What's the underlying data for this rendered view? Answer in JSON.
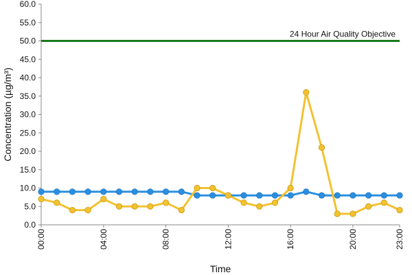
{
  "chart_data": {
    "type": "line",
    "title": "",
    "xlabel": "Time",
    "ylabel": "Concentration (µg/m³)",
    "ylim": [
      0,
      60
    ],
    "ytick_labels": [
      "0.0",
      "5.0",
      "10.0",
      "15.0",
      "20.0",
      "25.0",
      "30.0",
      "35.0",
      "40.0",
      "45.0",
      "50.0",
      "55.0",
      "60.0"
    ],
    "x": [
      "00:00",
      "01:00",
      "02:00",
      "03:00",
      "04:00",
      "05:00",
      "06:00",
      "07:00",
      "08:00",
      "09:00",
      "10:00",
      "11:00",
      "12:00",
      "13:00",
      "14:00",
      "15:00",
      "16:00",
      "17:00",
      "18:00",
      "19:00",
      "20:00",
      "21:00",
      "22:00",
      "23:00"
    ],
    "xtick_labels": [
      "00:00",
      "04:00",
      "08:00",
      "12:00",
      "16:00",
      "20:00",
      "23:00"
    ],
    "grid": false,
    "series": [
      {
        "color": "#2b8fe0",
        "marker": "circle",
        "values": [
          9,
          9,
          9,
          9,
          9,
          9,
          9,
          9,
          9,
          9,
          8,
          8,
          8,
          8,
          8,
          8,
          8,
          9,
          8,
          8,
          8,
          8,
          8,
          8
        ]
      },
      {
        "color": "#f2c230",
        "marker": "circle",
        "values": [
          7,
          6,
          4,
          4,
          7,
          5,
          5,
          5,
          6,
          4,
          10,
          10,
          8,
          6,
          5,
          6,
          10,
          36,
          21,
          3,
          3,
          5,
          6,
          4
        ]
      }
    ],
    "reference_line": {
      "value": 50,
      "color": "#1a7a1a",
      "label": "24 Hour Air Quality Objective"
    }
  }
}
